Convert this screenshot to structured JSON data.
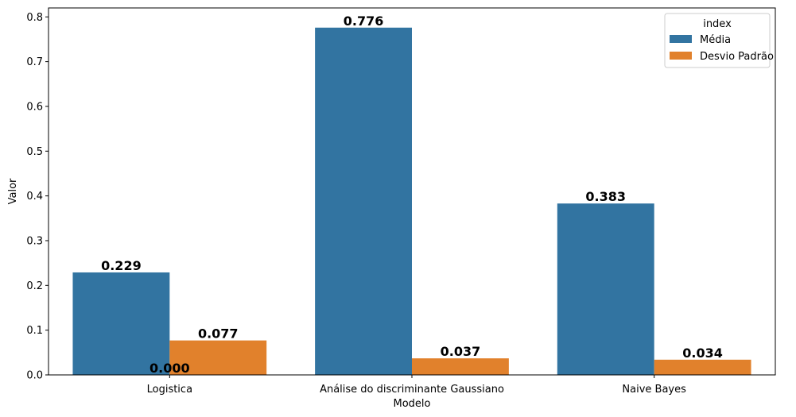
{
  "chart_data": {
    "type": "bar",
    "categories": [
      "Logistica",
      "Análise do discriminante Gaussiano",
      "Naive Bayes"
    ],
    "series": [
      {
        "name": "Média",
        "values": [
          0.229,
          0.776,
          0.383
        ],
        "color": "#3274a1"
      },
      {
        "name": "Desvio Padrão",
        "values": [
          0.077,
          0.037,
          0.034
        ],
        "color": "#e1812c"
      }
    ],
    "data_labels": [
      [
        "0.229",
        "0.776",
        "0.383"
      ],
      [
        "0.077",
        "0.037",
        "0.034"
      ]
    ],
    "extra_annotations": [
      {
        "text": "0.000",
        "category_index": 0,
        "value": 0.0
      }
    ],
    "xlabel": "Modelo",
    "ylabel": "Valor",
    "ylim": [
      0,
      0.82
    ],
    "yticks": [
      0.0,
      0.1,
      0.2,
      0.3,
      0.4,
      0.5,
      0.6,
      0.7,
      0.8
    ],
    "ytick_labels": [
      "0.0",
      "0.1",
      "0.2",
      "0.3",
      "0.4",
      "0.5",
      "0.6",
      "0.7",
      "0.8"
    ],
    "legend": {
      "title": "index",
      "placement": "top-right"
    },
    "grid": false
  }
}
